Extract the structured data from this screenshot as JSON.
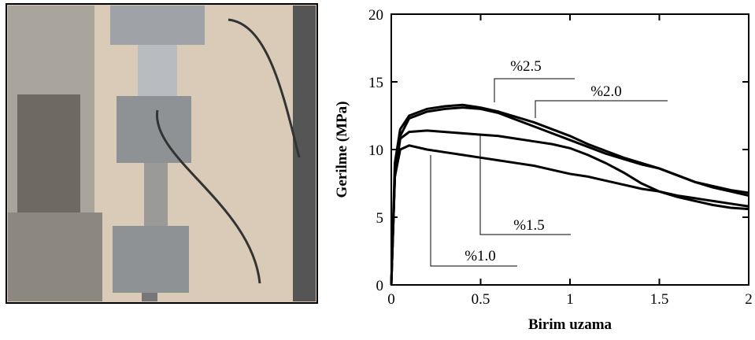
{
  "chart_data": {
    "type": "line",
    "xlabel": "Birim uzama",
    "ylabel": "Gerilme (MPa)",
    "x": [
      0,
      0.02,
      0.05,
      0.1,
      0.2,
      0.3,
      0.4,
      0.5,
      0.6,
      0.7,
      0.8,
      0.9,
      1.0,
      1.1,
      1.2,
      1.3,
      1.4,
      1.5,
      1.6,
      1.7,
      1.8,
      1.9,
      2.0
    ],
    "series": [
      {
        "name": "%2.5",
        "color": "#000000",
        "values": [
          0,
          9,
          11.5,
          12.5,
          13.0,
          13.2,
          13.3,
          13.1,
          12.8,
          12.4,
          12.0,
          11.5,
          11.0,
          10.4,
          9.9,
          9.4,
          9.0,
          8.6,
          8.1,
          7.6,
          7.3,
          7.0,
          6.8
        ]
      },
      {
        "name": "%2.0",
        "color": "#000000",
        "values": [
          0,
          8,
          11,
          12.3,
          12.8,
          13.0,
          13.1,
          13.0,
          12.7,
          12.2,
          11.7,
          11.2,
          10.7,
          10.2,
          9.7,
          9.3,
          8.9,
          8.6,
          8.1,
          7.6,
          7.2,
          6.9,
          6.6
        ]
      },
      {
        "name": "%1.5",
        "color": "#000000",
        "values": [
          0,
          8,
          10.8,
          11.3,
          11.4,
          11.3,
          11.2,
          11.1,
          11.0,
          10.8,
          10.6,
          10.4,
          10.1,
          9.6,
          9.0,
          8.3,
          7.5,
          6.9,
          6.5,
          6.2,
          5.9,
          5.7,
          5.6
        ]
      },
      {
        "name": "%1.0",
        "color": "#000000",
        "values": [
          0,
          8,
          10.0,
          10.3,
          10.0,
          9.8,
          9.6,
          9.4,
          9.2,
          9.0,
          8.8,
          8.5,
          8.2,
          8.0,
          7.7,
          7.4,
          7.1,
          6.9,
          6.6,
          6.4,
          6.2,
          6.0,
          5.8
        ]
      }
    ],
    "xlim": [
      0,
      2
    ],
    "xticks": [
      0,
      0.5,
      1,
      1.5,
      2
    ],
    "ylim": [
      0,
      20
    ],
    "yticks": [
      0,
      5,
      10,
      15,
      20
    ]
  }
}
